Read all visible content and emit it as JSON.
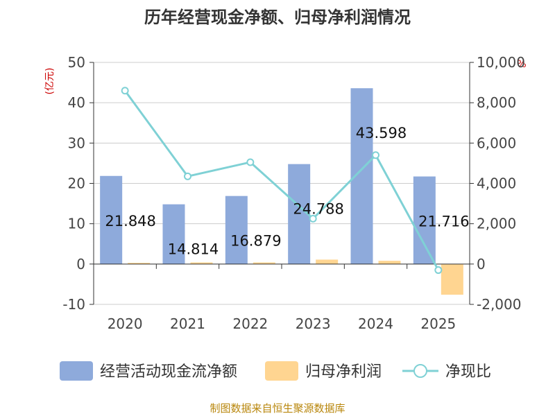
{
  "title": "历年经营现金净额、归母净利润情况",
  "source": "制图数据来自恒生聚源数据库",
  "chart_data": {
    "type": "bar",
    "categories": [
      "2020",
      "2021",
      "2022",
      "2023",
      "2024",
      "2025"
    ],
    "series": [
      {
        "name": "经营活动现金流净额",
        "axis": "left",
        "type": "bar",
        "color": "#8eaadb",
        "values": [
          21.848,
          14.814,
          16.879,
          24.788,
          43.598,
          21.716
        ]
      },
      {
        "name": "归母净利润",
        "axis": "left",
        "type": "bar",
        "color": "#ffd591",
        "values": [
          0.3,
          0.4,
          0.4,
          1.1,
          0.8,
          -7.6
        ]
      },
      {
        "name": "净现比",
        "axis": "right",
        "type": "line",
        "color": "#7fd1d5",
        "values": [
          8600,
          4350,
          5050,
          2250,
          5400,
          -300
        ]
      }
    ],
    "data_labels": [
      "21.848",
      "14.814",
      "16.879",
      "24.788",
      "43.598",
      "21.716"
    ],
    "y_left": {
      "unit": "(亿元)",
      "range": [
        -10,
        50
      ],
      "ticks": [
        50,
        40,
        30,
        20,
        10,
        0,
        -10
      ],
      "tick_labels": [
        "50",
        "40",
        "30",
        "20",
        "10",
        "0",
        "-10"
      ]
    },
    "y_right": {
      "unit": "%",
      "range": [
        -2000,
        10000
      ],
      "ticks": [
        10000,
        8000,
        6000,
        4000,
        2000,
        0,
        -2000
      ],
      "tick_labels": [
        "10,000",
        "8,000",
        "6,000",
        "4,000",
        "2,000",
        "0",
        "-2,000"
      ]
    },
    "grid": true,
    "legend_position": "bottom"
  }
}
